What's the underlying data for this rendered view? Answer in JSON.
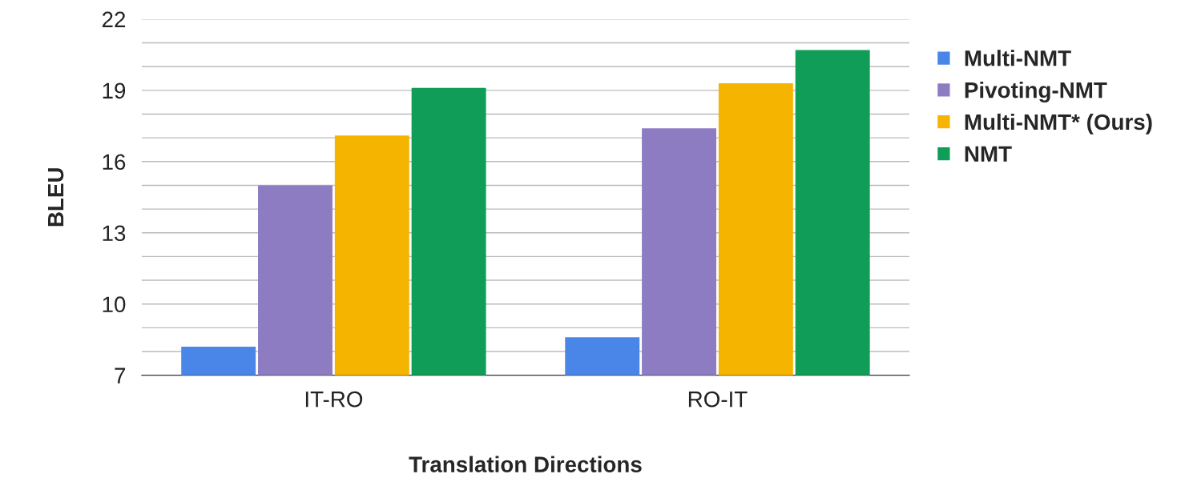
{
  "chart_data": {
    "type": "bar",
    "xlabel": "Translation Directions",
    "ylabel": "BLEU",
    "categories": [
      "IT-RO",
      "RO-IT"
    ],
    "series": [
      {
        "name": "Multi-NMT",
        "color": "#4a86e8",
        "values": [
          8.2,
          8.6
        ]
      },
      {
        "name": "Pivoting-NMT",
        "color": "#8e7cc3",
        "values": [
          15.0,
          17.4
        ]
      },
      {
        "name": "Multi-NMT* (Ours)",
        "color": "#f4b400",
        "values": [
          17.1,
          19.3
        ]
      },
      {
        "name": "NMT",
        "color": "#0f9d58",
        "values": [
          19.1,
          20.7
        ]
      }
    ],
    "ylim": [
      7,
      22
    ],
    "yticks": [
      7,
      {
        "value": 8,
        "label": null
      },
      {
        "value": 9,
        "label": null
      },
      10,
      {
        "value": 11,
        "label": null
      },
      {
        "value": 12,
        "label": null
      },
      13,
      {
        "value": 14,
        "label": null
      },
      {
        "value": 15,
        "label": null
      },
      16,
      {
        "value": 17,
        "label": null
      },
      {
        "value": 18,
        "label": null
      },
      19,
      {
        "value": 20,
        "label": null
      },
      {
        "value": 21,
        "label": null
      },
      22
    ],
    "grid": "y",
    "legend": "right"
  }
}
